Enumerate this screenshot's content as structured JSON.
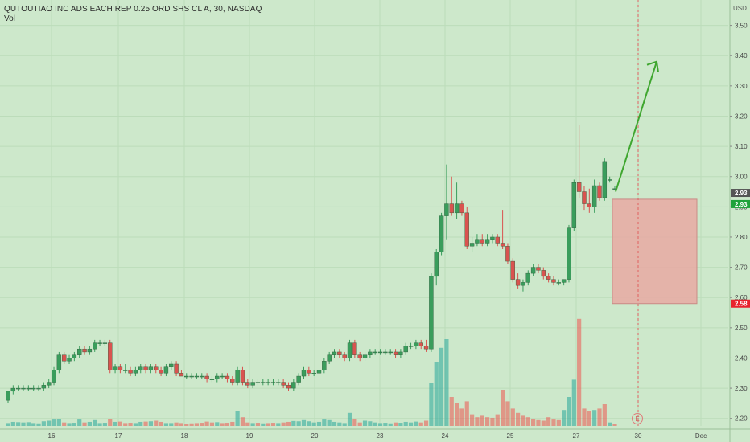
{
  "header": {
    "title": "QUTOUTIAO INC ADS EACH REP 0.25 ORD SHS CL A, 30, NASDAQ",
    "volume_label": "Vol",
    "currency": "USD"
  },
  "earnings_marker": "E",
  "price_tags": [
    {
      "label": "2.93",
      "value": 2.93,
      "color": "#555555"
    },
    {
      "label": "2.93",
      "value": 2.925,
      "color": "#1fa23a"
    },
    {
      "label": "2.58",
      "value": 2.58,
      "color": "#e8222c"
    }
  ],
  "colors": {
    "background": "#cde8cb",
    "up": "#26a69a",
    "down": "#ef5350",
    "up_candle": "#3a9d5c",
    "down_candle": "#d9534f",
    "arrow": "#3fa62f",
    "risk_box": "#e8a9a3"
  },
  "chart_data": {
    "type": "candlestick",
    "title": "QUTOUTIAO INC ADS EACH REP 0.25 ORD SHS CL A, 30, NASDAQ",
    "x_ticks": [
      "16",
      "17",
      "18",
      "19",
      "20",
      "23",
      "24",
      "25",
      "27",
      "30",
      "Dec"
    ],
    "y_ticks": [
      "3.50",
      "3.40",
      "3.30",
      "3.20",
      "3.10",
      "3.00",
      "2.90",
      "2.80",
      "2.70",
      "2.60",
      "2.50",
      "2.40",
      "2.30",
      "2.20"
    ],
    "ylim": [
      2.17,
      3.56
    ],
    "candles": [
      [
        2.26,
        2.29,
        2.25,
        2.29
      ],
      [
        2.29,
        2.31,
        2.28,
        2.3
      ],
      [
        2.3,
        2.31,
        2.29,
        2.3
      ],
      [
        2.3,
        2.31,
        2.29,
        2.3
      ],
      [
        2.3,
        2.31,
        2.29,
        2.3
      ],
      [
        2.3,
        2.31,
        2.29,
        2.3
      ],
      [
        2.3,
        2.31,
        2.29,
        2.3
      ],
      [
        2.3,
        2.32,
        2.29,
        2.31
      ],
      [
        2.31,
        2.33,
        2.3,
        2.32
      ],
      [
        2.32,
        2.37,
        2.31,
        2.36
      ],
      [
        2.36,
        2.42,
        2.35,
        2.41
      ],
      [
        2.41,
        2.42,
        2.38,
        2.39
      ],
      [
        2.39,
        2.41,
        2.38,
        2.4
      ],
      [
        2.4,
        2.42,
        2.39,
        2.41
      ],
      [
        2.41,
        2.44,
        2.4,
        2.43
      ],
      [
        2.43,
        2.44,
        2.41,
        2.42
      ],
      [
        2.42,
        2.44,
        2.41,
        2.43
      ],
      [
        2.43,
        2.46,
        2.42,
        2.45
      ],
      [
        2.45,
        2.46,
        2.44,
        2.45
      ],
      [
        2.45,
        2.46,
        2.44,
        2.45
      ],
      [
        2.45,
        2.46,
        2.35,
        2.36
      ],
      [
        2.36,
        2.38,
        2.35,
        2.37
      ],
      [
        2.37,
        2.38,
        2.35,
        2.36
      ],
      [
        2.36,
        2.38,
        2.35,
        2.36
      ],
      [
        2.36,
        2.37,
        2.34,
        2.35
      ],
      [
        2.35,
        2.37,
        2.34,
        2.36
      ],
      [
        2.36,
        2.38,
        2.35,
        2.37
      ],
      [
        2.37,
        2.38,
        2.35,
        2.36
      ],
      [
        2.36,
        2.38,
        2.35,
        2.37
      ],
      [
        2.37,
        2.38,
        2.35,
        2.36
      ],
      [
        2.36,
        2.37,
        2.34,
        2.35
      ],
      [
        2.35,
        2.38,
        2.34,
        2.37
      ],
      [
        2.37,
        2.39,
        2.36,
        2.38
      ],
      [
        2.38,
        2.39,
        2.34,
        2.35
      ],
      [
        2.35,
        2.36,
        2.34,
        2.34
      ],
      [
        2.34,
        2.35,
        2.33,
        2.34
      ],
      [
        2.34,
        2.35,
        2.33,
        2.34
      ],
      [
        2.34,
        2.35,
        2.33,
        2.34
      ],
      [
        2.34,
        2.35,
        2.33,
        2.34
      ],
      [
        2.34,
        2.35,
        2.32,
        2.33
      ],
      [
        2.33,
        2.34,
        2.32,
        2.33
      ],
      [
        2.33,
        2.35,
        2.32,
        2.34
      ],
      [
        2.34,
        2.35,
        2.33,
        2.34
      ],
      [
        2.34,
        2.35,
        2.32,
        2.33
      ],
      [
        2.33,
        2.34,
        2.31,
        2.32
      ],
      [
        2.32,
        2.37,
        2.31,
        2.36
      ],
      [
        2.36,
        2.37,
        2.31,
        2.32
      ],
      [
        2.32,
        2.33,
        2.3,
        2.31
      ],
      [
        2.31,
        2.33,
        2.3,
        2.32
      ],
      [
        2.32,
        2.33,
        2.31,
        2.32
      ],
      [
        2.32,
        2.33,
        2.31,
        2.32
      ],
      [
        2.32,
        2.33,
        2.31,
        2.32
      ],
      [
        2.32,
        2.33,
        2.31,
        2.32
      ],
      [
        2.32,
        2.33,
        2.31,
        2.32
      ],
      [
        2.32,
        2.33,
        2.3,
        2.31
      ],
      [
        2.31,
        2.32,
        2.29,
        2.3
      ],
      [
        2.3,
        2.33,
        2.29,
        2.32
      ],
      [
        2.32,
        2.35,
        2.31,
        2.34
      ],
      [
        2.34,
        2.37,
        2.33,
        2.36
      ],
      [
        2.36,
        2.37,
        2.34,
        2.35
      ],
      [
        2.35,
        2.36,
        2.34,
        2.35
      ],
      [
        2.35,
        2.37,
        2.34,
        2.36
      ],
      [
        2.36,
        2.4,
        2.35,
        2.39
      ],
      [
        2.39,
        2.42,
        2.38,
        2.41
      ],
      [
        2.41,
        2.43,
        2.4,
        2.42
      ],
      [
        2.42,
        2.43,
        2.4,
        2.41
      ],
      [
        2.41,
        2.42,
        2.39,
        2.4
      ],
      [
        2.4,
        2.46,
        2.39,
        2.45
      ],
      [
        2.45,
        2.46,
        2.4,
        2.41
      ],
      [
        2.41,
        2.42,
        2.39,
        2.4
      ],
      [
        2.4,
        2.42,
        2.39,
        2.41
      ],
      [
        2.41,
        2.43,
        2.4,
        2.42
      ],
      [
        2.42,
        2.43,
        2.41,
        2.42
      ],
      [
        2.42,
        2.43,
        2.41,
        2.42
      ],
      [
        2.42,
        2.43,
        2.41,
        2.42
      ],
      [
        2.42,
        2.43,
        2.41,
        2.42
      ],
      [
        2.42,
        2.43,
        2.4,
        2.41
      ],
      [
        2.41,
        2.43,
        2.4,
        2.42
      ],
      [
        2.42,
        2.45,
        2.41,
        2.44
      ],
      [
        2.44,
        2.45,
        2.43,
        2.44
      ],
      [
        2.44,
        2.46,
        2.43,
        2.45
      ],
      [
        2.45,
        2.46,
        2.43,
        2.44
      ],
      [
        2.44,
        2.46,
        2.42,
        2.43
      ],
      [
        2.43,
        2.68,
        2.42,
        2.67
      ],
      [
        2.67,
        2.76,
        2.64,
        2.75
      ],
      [
        2.75,
        2.88,
        2.74,
        2.87
      ],
      [
        2.87,
        3.04,
        2.79,
        2.91
      ],
      [
        2.91,
        3.0,
        2.87,
        2.88
      ],
      [
        2.88,
        2.98,
        2.86,
        2.91
      ],
      [
        2.91,
        2.92,
        2.87,
        2.88
      ],
      [
        2.88,
        2.9,
        2.76,
        2.77
      ],
      [
        2.77,
        2.8,
        2.75,
        2.78
      ],
      [
        2.78,
        2.81,
        2.77,
        2.79
      ],
      [
        2.79,
        2.81,
        2.77,
        2.78
      ],
      [
        2.78,
        2.81,
        2.77,
        2.79
      ],
      [
        2.79,
        2.81,
        2.78,
        2.8
      ],
      [
        2.8,
        2.81,
        2.77,
        2.78
      ],
      [
        2.78,
        2.89,
        2.76,
        2.77
      ],
      [
        2.77,
        2.78,
        2.71,
        2.72
      ],
      [
        2.72,
        2.73,
        2.65,
        2.66
      ],
      [
        2.66,
        2.68,
        2.63,
        2.64
      ],
      [
        2.64,
        2.66,
        2.62,
        2.65
      ],
      [
        2.65,
        2.69,
        2.64,
        2.68
      ],
      [
        2.68,
        2.71,
        2.67,
        2.7
      ],
      [
        2.7,
        2.71,
        2.68,
        2.69
      ],
      [
        2.69,
        2.7,
        2.66,
        2.67
      ],
      [
        2.67,
        2.68,
        2.65,
        2.66
      ],
      [
        2.66,
        2.67,
        2.64,
        2.65
      ],
      [
        2.65,
        2.66,
        2.64,
        2.65
      ],
      [
        2.65,
        2.66,
        2.64,
        2.66
      ],
      [
        2.66,
        2.84,
        2.65,
        2.83
      ],
      [
        2.83,
        2.99,
        2.82,
        2.98
      ],
      [
        2.98,
        3.17,
        2.93,
        2.95
      ],
      [
        2.95,
        2.97,
        2.89,
        2.91
      ],
      [
        2.91,
        2.96,
        2.88,
        2.9
      ],
      [
        2.9,
        2.99,
        2.88,
        2.97
      ],
      [
        2.97,
        2.98,
        2.92,
        2.93
      ],
      [
        2.93,
        3.06,
        2.92,
        3.05
      ],
      [
        2.99,
        3.0,
        2.98,
        2.99
      ],
      [
        2.96,
        2.97,
        2.96,
        2.96
      ]
    ],
    "volume": [
      {
        "v": 0.1,
        "up": true
      },
      {
        "v": 0.14,
        "up": true
      },
      {
        "v": 0.13,
        "up": true
      },
      {
        "v": 0.12,
        "up": true
      },
      {
        "v": 0.13,
        "up": true
      },
      {
        "v": 0.1,
        "up": true
      },
      {
        "v": 0.09,
        "up": true
      },
      {
        "v": 0.16,
        "up": true
      },
      {
        "v": 0.18,
        "up": true
      },
      {
        "v": 0.22,
        "up": true
      },
      {
        "v": 0.25,
        "up": true
      },
      {
        "v": 0.12,
        "up": false
      },
      {
        "v": 0.1,
        "up": true
      },
      {
        "v": 0.11,
        "up": true
      },
      {
        "v": 0.22,
        "up": true
      },
      {
        "v": 0.12,
        "up": false
      },
      {
        "v": 0.14,
        "up": true
      },
      {
        "v": 0.2,
        "up": true
      },
      {
        "v": 0.1,
        "up": true
      },
      {
        "v": 0.11,
        "up": true
      },
      {
        "v": 0.25,
        "up": false
      },
      {
        "v": 0.14,
        "up": true
      },
      {
        "v": 0.15,
        "up": false
      },
      {
        "v": 0.1,
        "up": false
      },
      {
        "v": 0.11,
        "up": false
      },
      {
        "v": 0.1,
        "up": true
      },
      {
        "v": 0.14,
        "up": true
      },
      {
        "v": 0.15,
        "up": false
      },
      {
        "v": 0.16,
        "up": true
      },
      {
        "v": 0.18,
        "up": false
      },
      {
        "v": 0.14,
        "up": false
      },
      {
        "v": 0.1,
        "up": true
      },
      {
        "v": 0.1,
        "up": true
      },
      {
        "v": 0.12,
        "up": false
      },
      {
        "v": 0.1,
        "up": false
      },
      {
        "v": 0.08,
        "up": false
      },
      {
        "v": 0.09,
        "up": false
      },
      {
        "v": 0.1,
        "up": false
      },
      {
        "v": 0.11,
        "up": false
      },
      {
        "v": 0.15,
        "up": false
      },
      {
        "v": 0.12,
        "up": false
      },
      {
        "v": 0.13,
        "up": true
      },
      {
        "v": 0.1,
        "up": false
      },
      {
        "v": 0.11,
        "up": false
      },
      {
        "v": 0.14,
        "up": false
      },
      {
        "v": 0.5,
        "up": true
      },
      {
        "v": 0.3,
        "up": false
      },
      {
        "v": 0.12,
        "up": false
      },
      {
        "v": 0.1,
        "up": true
      },
      {
        "v": 0.11,
        "up": false
      },
      {
        "v": 0.09,
        "up": true
      },
      {
        "v": 0.1,
        "up": false
      },
      {
        "v": 0.11,
        "up": false
      },
      {
        "v": 0.1,
        "up": true
      },
      {
        "v": 0.12,
        "up": false
      },
      {
        "v": 0.14,
        "up": false
      },
      {
        "v": 0.17,
        "up": true
      },
      {
        "v": 0.16,
        "up": true
      },
      {
        "v": 0.2,
        "up": true
      },
      {
        "v": 0.16,
        "up": true
      },
      {
        "v": 0.12,
        "up": true
      },
      {
        "v": 0.14,
        "up": true
      },
      {
        "v": 0.22,
        "up": true
      },
      {
        "v": 0.2,
        "up": true
      },
      {
        "v": 0.14,
        "up": true
      },
      {
        "v": 0.12,
        "up": true
      },
      {
        "v": 0.1,
        "up": true
      },
      {
        "v": 0.45,
        "up": true
      },
      {
        "v": 0.25,
        "up": false
      },
      {
        "v": 0.12,
        "up": false
      },
      {
        "v": 0.18,
        "up": true
      },
      {
        "v": 0.16,
        "up": true
      },
      {
        "v": 0.12,
        "up": true
      },
      {
        "v": 0.1,
        "up": true
      },
      {
        "v": 0.11,
        "up": true
      },
      {
        "v": 0.09,
        "up": true
      },
      {
        "v": 0.12,
        "up": false
      },
      {
        "v": 0.11,
        "up": true
      },
      {
        "v": 0.14,
        "up": true
      },
      {
        "v": 0.12,
        "up": true
      },
      {
        "v": 0.15,
        "up": true
      },
      {
        "v": 0.12,
        "up": false
      },
      {
        "v": 0.18,
        "up": false
      },
      {
        "v": 1.5,
        "up": true
      },
      {
        "v": 2.2,
        "up": true
      },
      {
        "v": 2.7,
        "up": true
      },
      {
        "v": 3.0,
        "up": true
      },
      {
        "v": 1.0,
        "up": false
      },
      {
        "v": 0.8,
        "up": false
      },
      {
        "v": 0.6,
        "up": false
      },
      {
        "v": 0.85,
        "up": false
      },
      {
        "v": 0.4,
        "up": false
      },
      {
        "v": 0.3,
        "up": false
      },
      {
        "v": 0.35,
        "up": false
      },
      {
        "v": 0.3,
        "up": false
      },
      {
        "v": 0.28,
        "up": false
      },
      {
        "v": 0.4,
        "up": false
      },
      {
        "v": 1.25,
        "up": false
      },
      {
        "v": 0.85,
        "up": false
      },
      {
        "v": 0.6,
        "up": false
      },
      {
        "v": 0.45,
        "up": false
      },
      {
        "v": 0.35,
        "up": false
      },
      {
        "v": 0.3,
        "up": false
      },
      {
        "v": 0.25,
        "up": false
      },
      {
        "v": 0.2,
        "up": false
      },
      {
        "v": 0.18,
        "up": false
      },
      {
        "v": 0.3,
        "up": false
      },
      {
        "v": 0.22,
        "up": false
      },
      {
        "v": 0.2,
        "up": false
      },
      {
        "v": 0.55,
        "up": true
      },
      {
        "v": 1.0,
        "up": true
      },
      {
        "v": 1.6,
        "up": true
      },
      {
        "v": 3.7,
        "up": false
      },
      {
        "v": 0.6,
        "up": false
      },
      {
        "v": 0.5,
        "up": false
      },
      {
        "v": 0.55,
        "up": true
      },
      {
        "v": 0.6,
        "up": false
      },
      {
        "v": 0.75,
        "up": false
      },
      {
        "v": 0.12,
        "up": true
      },
      {
        "v": 0.08,
        "up": false
      }
    ],
    "projection_arrow": {
      "from": 2.95,
      "to": 3.38
    },
    "risk_box": {
      "top": 2.925,
      "bottom": 2.58
    }
  }
}
